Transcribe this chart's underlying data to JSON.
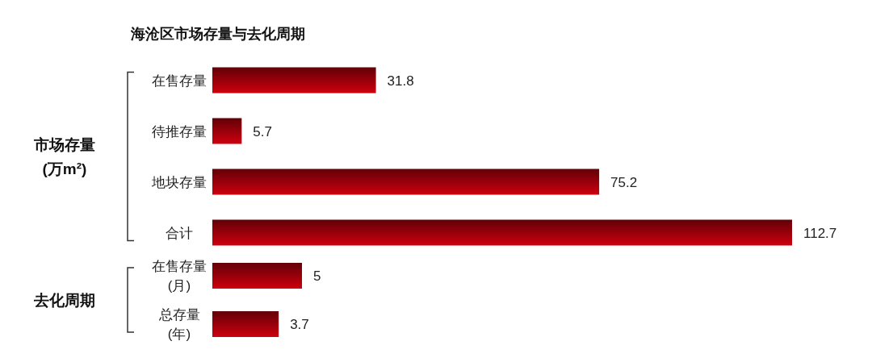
{
  "chart_data": [
    {
      "type": "bar",
      "orientation": "horizontal",
      "title": "海沧区市场存量与去化周期",
      "ylabel": "市场存量 (万m²)",
      "categories": [
        "在售存量",
        "待推存量",
        "地块存量",
        "合计"
      ],
      "values": [
        31.8,
        5.7,
        75.2,
        112.7
      ],
      "color": "#b3000c",
      "data_labels": true
    },
    {
      "type": "bar",
      "orientation": "horizontal",
      "ylabel": "去化周期",
      "categories": [
        "在售存量 (月)",
        "总存量 (年)"
      ],
      "values": [
        5,
        3.7
      ],
      "color": "#b3000c",
      "data_labels": true
    }
  ]
}
